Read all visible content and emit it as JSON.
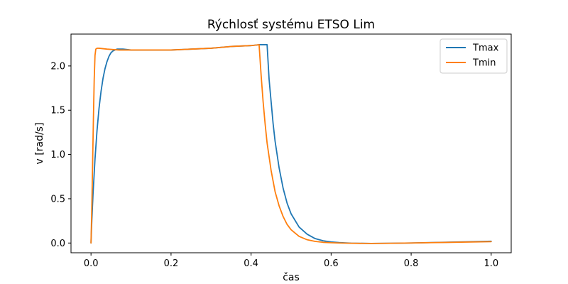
{
  "chart_data": {
    "type": "line",
    "title": "Rýchlosť systému ETSO Lim",
    "xlabel": "čas",
    "ylabel": "v [rad/s]",
    "xlim": [
      -0.05,
      1.05
    ],
    "ylim": [
      -0.11,
      2.36
    ],
    "xticks": [
      0.0,
      0.2,
      0.4,
      0.6,
      0.8,
      1.0
    ],
    "xtick_labels": [
      "0.0",
      "0.2",
      "0.4",
      "0.6",
      "0.8",
      "1.0"
    ],
    "yticks": [
      0.0,
      0.5,
      1.0,
      1.5,
      2.0
    ],
    "ytick_labels": [
      "0.0",
      "0.5",
      "1.0",
      "1.5",
      "2.0"
    ],
    "grid": false,
    "legend_position": "top-right",
    "series": [
      {
        "name": "Tmax",
        "color": "#1f77b4",
        "x": [
          0.0,
          0.002,
          0.005,
          0.01,
          0.015,
          0.02,
          0.025,
          0.03,
          0.035,
          0.04,
          0.045,
          0.05,
          0.055,
          0.06,
          0.065,
          0.08,
          0.1,
          0.15,
          0.2,
          0.25,
          0.3,
          0.35,
          0.4,
          0.42,
          0.44,
          0.445,
          0.45,
          0.455,
          0.46,
          0.47,
          0.48,
          0.49,
          0.5,
          0.52,
          0.54,
          0.56,
          0.58,
          0.6,
          0.62,
          0.65,
          0.7,
          0.75,
          0.8,
          0.85,
          0.9,
          0.95,
          1.0
        ],
        "y": [
          0.0,
          0.25,
          0.55,
          0.95,
          1.27,
          1.52,
          1.71,
          1.86,
          1.97,
          2.05,
          2.11,
          2.15,
          2.17,
          2.18,
          2.19,
          2.19,
          2.18,
          2.18,
          2.18,
          2.19,
          2.2,
          2.22,
          2.23,
          2.24,
          2.24,
          1.85,
          1.6,
          1.35,
          1.15,
          0.85,
          0.62,
          0.45,
          0.33,
          0.18,
          0.1,
          0.05,
          0.025,
          0.012,
          0.005,
          -0.002,
          -0.005,
          -0.003,
          0.0,
          0.005,
          0.01,
          0.015,
          0.02
        ]
      },
      {
        "name": "Tmin",
        "color": "#ff7f0e",
        "x": [
          0.0,
          0.002,
          0.004,
          0.006,
          0.008,
          0.01,
          0.012,
          0.015,
          0.02,
          0.04,
          0.07,
          0.1,
          0.15,
          0.2,
          0.25,
          0.3,
          0.35,
          0.4,
          0.42,
          0.425,
          0.43,
          0.435,
          0.44,
          0.45,
          0.46,
          0.47,
          0.48,
          0.49,
          0.5,
          0.52,
          0.54,
          0.56,
          0.58,
          0.6,
          0.62,
          0.65,
          0.7,
          0.75,
          0.8,
          0.85,
          0.9,
          0.95,
          1.0
        ],
        "y": [
          0.0,
          0.4,
          0.9,
          1.4,
          1.85,
          2.12,
          2.19,
          2.2,
          2.2,
          2.19,
          2.18,
          2.18,
          2.18,
          2.18,
          2.19,
          2.2,
          2.22,
          2.23,
          2.24,
          1.9,
          1.6,
          1.35,
          1.13,
          0.82,
          0.58,
          0.42,
          0.3,
          0.21,
          0.15,
          0.075,
          0.037,
          0.018,
          0.008,
          0.003,
          0.0,
          -0.003,
          -0.005,
          -0.003,
          0.0,
          0.004,
          0.008,
          0.012,
          0.015
        ]
      }
    ]
  }
}
